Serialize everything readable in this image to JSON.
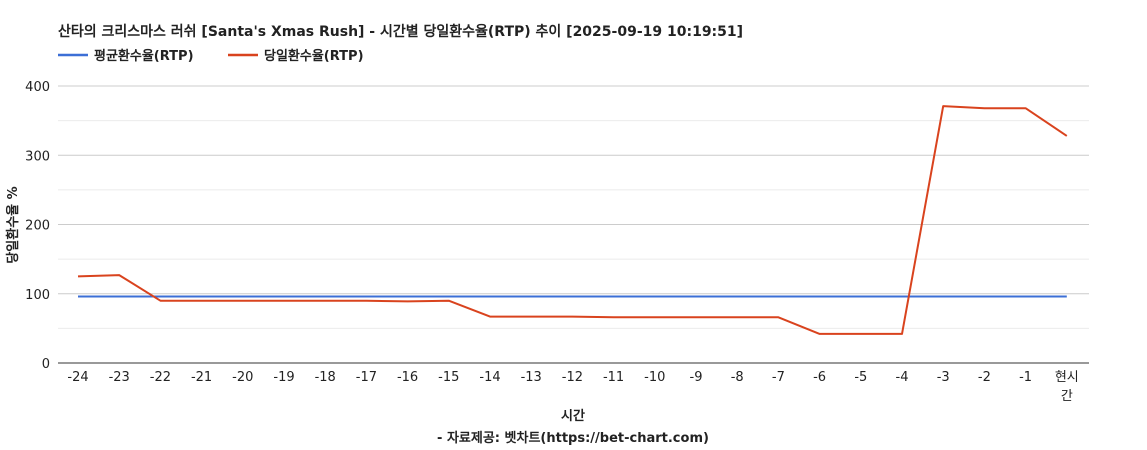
{
  "chart_data": {
    "type": "line",
    "title": "산타의 크리스마스 러쉬 [Santa's Xmas Rush] - 시간별 당일환수율(RTP) 추이 [2025-09-19 10:19:51]",
    "xlabel": "시간",
    "ylabel": "당일환수율 %",
    "source": "- 자료제공: 벳차트(https://bet-chart.com)",
    "ylim": [
      0,
      400
    ],
    "yticks": [
      0,
      100,
      200,
      300,
      400
    ],
    "grid": true,
    "legend_position": "top-left",
    "categories": [
      "-24",
      "-23",
      "-22",
      "-21",
      "-20",
      "-19",
      "-18",
      "-17",
      "-16",
      "-15",
      "-14",
      "-13",
      "-12",
      "-11",
      "-10",
      "-9",
      "-8",
      "-7",
      "-6",
      "-5",
      "-4",
      "-3",
      "-2",
      "-1",
      "현시간"
    ],
    "series": [
      {
        "name": "평균환수율(RTP)",
        "color": "#3c6fd6",
        "values": [
          96,
          96,
          96,
          96,
          96,
          96,
          96,
          96,
          96,
          96,
          96,
          96,
          96,
          96,
          96,
          96,
          96,
          96,
          96,
          96,
          96,
          96,
          96,
          96,
          96
        ]
      },
      {
        "name": "당일환수율(RTP)",
        "color": "#d9431e",
        "values": [
          125,
          127,
          90,
          90,
          90,
          90,
          90,
          90,
          89,
          90,
          67,
          67,
          67,
          66,
          66,
          66,
          66,
          66,
          42,
          42,
          42,
          371,
          368,
          368,
          328
        ]
      }
    ]
  }
}
